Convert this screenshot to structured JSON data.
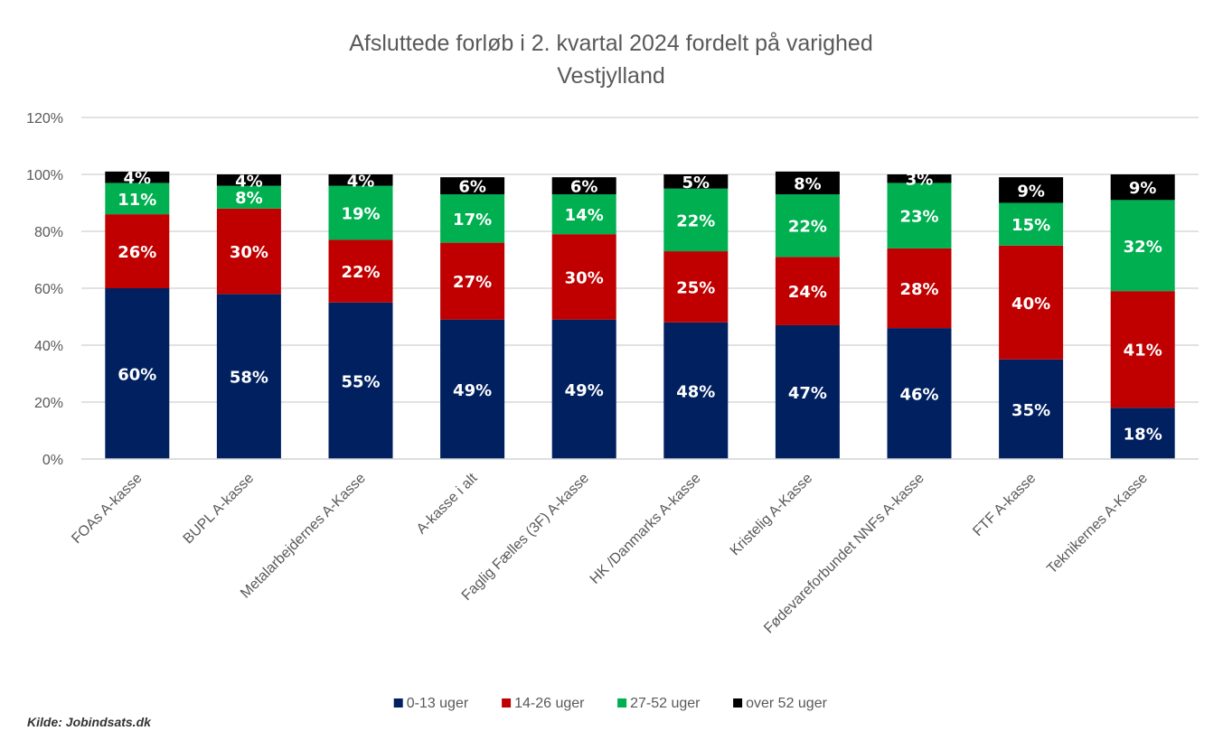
{
  "chart_data": {
    "type": "bar",
    "stacked": true,
    "title_lines": [
      "Afsluttede forløb  i 2. kvartal 2024 fordelt  på varighed",
      "Vestjylland"
    ],
    "categories": [
      "FOAs A-kasse",
      "BUPL A-kasse",
      "Metalarbejdernes A-Kasse",
      "A-kasse i alt",
      "Faglig Fælles (3F) A-kasse",
      "HK /Danmarks A-kasse",
      "Kristelig A-Kasse",
      "Fødevareforbundet NNFs A-kasse",
      "FTF A-kasse",
      "Teknikernes A-Kasse"
    ],
    "series": [
      {
        "name": "0-13 uger",
        "color": "#002060",
        "values": [
          60,
          58,
          55,
          49,
          49,
          48,
          47,
          46,
          35,
          18
        ]
      },
      {
        "name": "14-26 uger",
        "color": "#C00000",
        "values": [
          26,
          30,
          22,
          27,
          30,
          25,
          24,
          28,
          40,
          41
        ]
      },
      {
        "name": "27-52 uger",
        "color": "#00B050",
        "values": [
          11,
          8,
          19,
          17,
          14,
          22,
          22,
          23,
          15,
          32
        ]
      },
      {
        "name": "over 52 uger",
        "color": "#000000",
        "values": [
          4,
          4,
          4,
          6,
          6,
          5,
          8,
          3,
          9,
          9
        ]
      }
    ],
    "value_suffix": "%",
    "yticks": [
      "0%",
      "20%",
      "40%",
      "60%",
      "80%",
      "100%",
      "120%"
    ],
    "ylim": [
      0,
      120
    ],
    "grid": true,
    "legend_position": "bottom",
    "gridline_color": "#D9D9D9"
  },
  "source_note": "Kilde: Jobindsats.dk"
}
